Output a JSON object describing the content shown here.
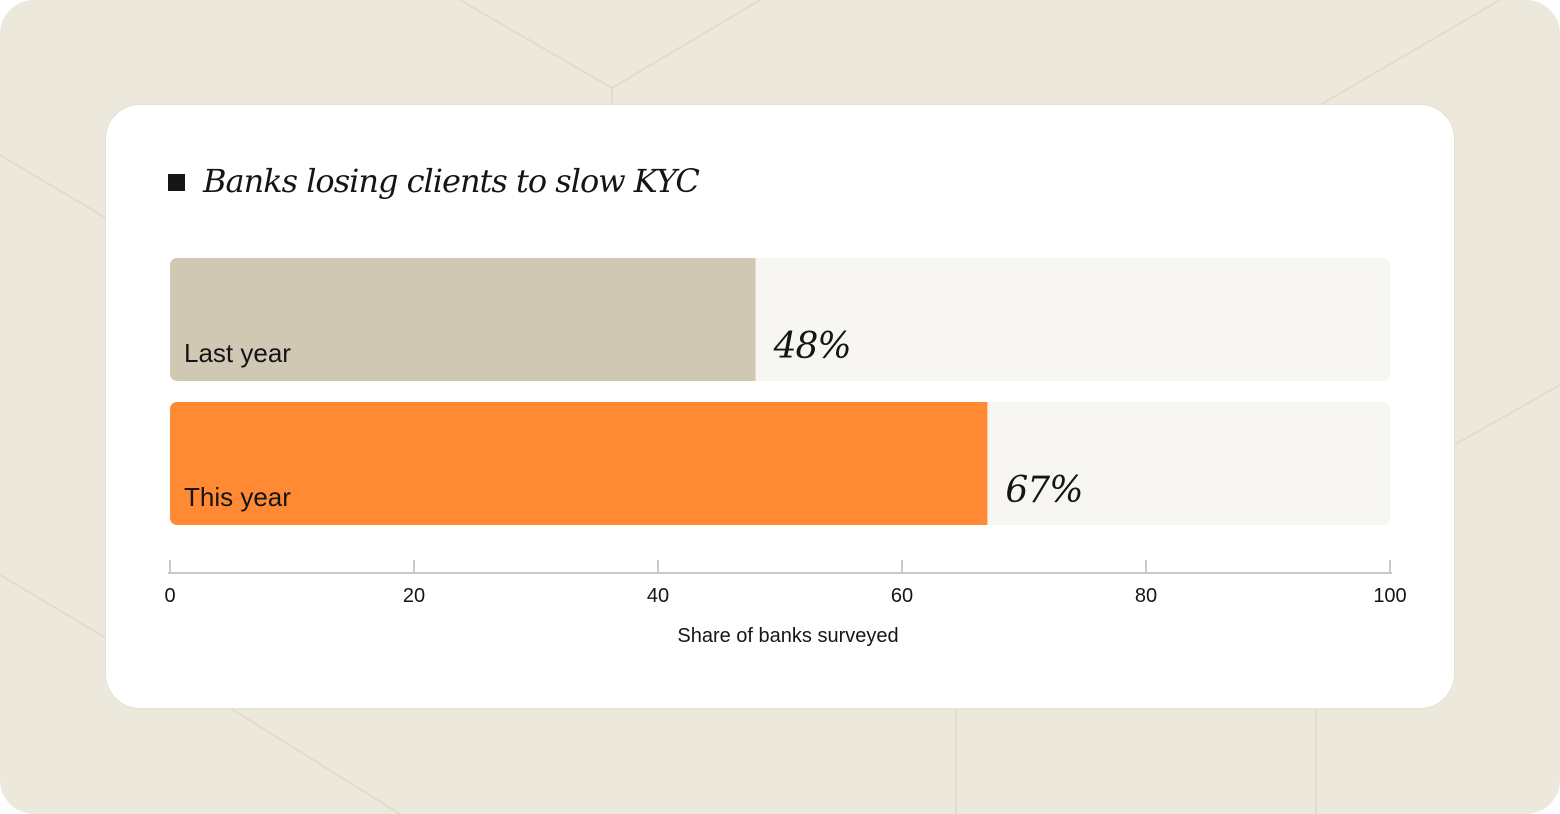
{
  "chart_data": {
    "type": "bar",
    "orientation": "horizontal",
    "title": "Banks losing clients to slow KYC",
    "categories": [
      "Last year",
      "This year"
    ],
    "values": [
      48,
      67
    ],
    "value_labels": [
      "48%",
      "67%"
    ],
    "xlabel": "Share of banks surveyed",
    "ylabel": "",
    "xlim": [
      0,
      100
    ],
    "xticks": [
      "0",
      "20",
      "40",
      "60",
      "80",
      "100"
    ],
    "grid": false,
    "colors": {
      "Last year": "#d1c8b4",
      "This year": "#ff8a33",
      "track": "#f7f6f3",
      "axis": "#c9c9c9",
      "background": "#ede8dc",
      "title_marker": "#151515"
    }
  }
}
